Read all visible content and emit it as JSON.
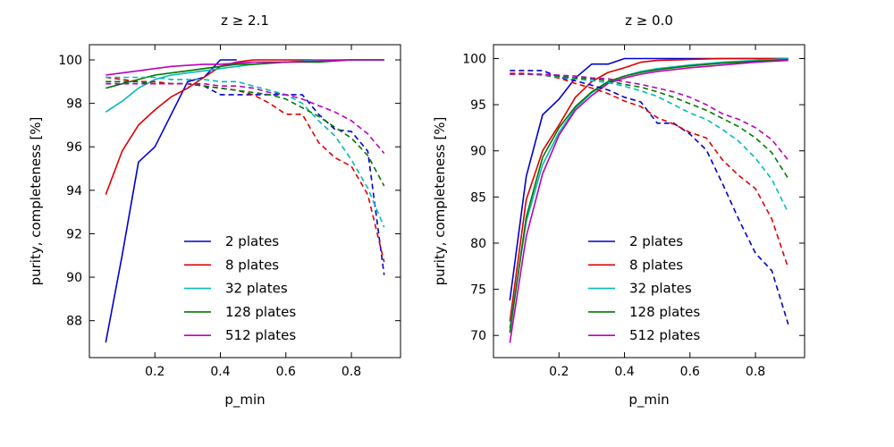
{
  "chart_data": [
    {
      "type": "line",
      "title": "z ≥ 2.1",
      "xlabel": "p_min",
      "ylabel": "purity, completeness [%]",
      "xlim": [
        0.0,
        0.95
      ],
      "ylim": [
        86.3,
        100.7
      ],
      "xticks": [
        0.2,
        0.4,
        0.6,
        0.8
      ],
      "yticks": [
        88,
        90,
        92,
        94,
        96,
        98,
        100
      ],
      "legend_position": "lower center",
      "series": [
        {
          "name": "2 plates",
          "color": "#0000cc",
          "style": "solid",
          "x": [
            0.05,
            0.1,
            0.15,
            0.2,
            0.25,
            0.3,
            0.35,
            0.4,
            0.45
          ],
          "y": [
            87.0,
            91.0,
            95.3,
            96.0,
            97.5,
            99.0,
            99.2,
            100.0,
            100.0
          ]
        },
        {
          "name": "8 plates",
          "color": "#dd0000",
          "style": "solid",
          "x": [
            0.05,
            0.1,
            0.15,
            0.2,
            0.25,
            0.3,
            0.35,
            0.4,
            0.45,
            0.5,
            0.6,
            0.7,
            0.8,
            0.9
          ],
          "y": [
            93.8,
            95.8,
            97.0,
            97.7,
            98.3,
            98.7,
            99.2,
            99.7,
            99.9,
            100.0,
            100.0,
            100.0,
            100.0,
            100.0
          ]
        },
        {
          "name": "32 plates",
          "color": "#00bbbb",
          "style": "solid",
          "x": [
            0.05,
            0.1,
            0.15,
            0.2,
            0.25,
            0.3,
            0.35,
            0.4,
            0.45,
            0.5,
            0.6,
            0.7,
            0.8,
            0.9
          ],
          "y": [
            97.6,
            98.1,
            98.7,
            99.1,
            99.3,
            99.4,
            99.5,
            99.6,
            99.7,
            99.8,
            99.9,
            100.0,
            100.0,
            100.0
          ]
        },
        {
          "name": "128 plates",
          "color": "#007700",
          "style": "solid",
          "x": [
            0.05,
            0.1,
            0.15,
            0.2,
            0.25,
            0.3,
            0.35,
            0.4,
            0.45,
            0.5,
            0.6,
            0.7,
            0.8,
            0.9
          ],
          "y": [
            98.7,
            98.9,
            99.1,
            99.3,
            99.4,
            99.5,
            99.6,
            99.7,
            99.8,
            99.8,
            99.9,
            99.9,
            100.0,
            100.0
          ]
        },
        {
          "name": "512 plates",
          "color": "#bb00bb",
          "style": "solid",
          "x": [
            0.05,
            0.1,
            0.15,
            0.2,
            0.25,
            0.3,
            0.35,
            0.4,
            0.45,
            0.5,
            0.6,
            0.7,
            0.8,
            0.9
          ],
          "y": [
            99.3,
            99.4,
            99.5,
            99.6,
            99.7,
            99.75,
            99.8,
            99.8,
            99.85,
            99.9,
            99.9,
            99.95,
            100.0,
            100.0
          ]
        },
        {
          "name": "2 plates completeness",
          "color": "#0000cc",
          "style": "dashed",
          "x": [
            0.05,
            0.1,
            0.15,
            0.2,
            0.25,
            0.3,
            0.35,
            0.4,
            0.45,
            0.5,
            0.55,
            0.6,
            0.65,
            0.7,
            0.75,
            0.8,
            0.85,
            0.9
          ],
          "y": [
            99.0,
            99.0,
            99.0,
            98.9,
            98.9,
            98.9,
            98.8,
            98.4,
            98.4,
            98.4,
            98.4,
            98.4,
            98.4,
            97.5,
            96.8,
            96.7,
            95.8,
            90.1
          ]
        },
        {
          "name": "8 plates completeness",
          "color": "#dd0000",
          "style": "dashed",
          "x": [
            0.05,
            0.1,
            0.15,
            0.2,
            0.25,
            0.3,
            0.35,
            0.4,
            0.45,
            0.5,
            0.55,
            0.6,
            0.65,
            0.7,
            0.75,
            0.8,
            0.85,
            0.9
          ],
          "y": [
            99.2,
            99.1,
            99.0,
            99.0,
            98.9,
            98.9,
            98.8,
            98.7,
            98.6,
            98.4,
            98.0,
            97.5,
            97.5,
            96.2,
            95.5,
            95.1,
            93.8,
            90.7
          ]
        },
        {
          "name": "32 plates completeness",
          "color": "#00bbbb",
          "style": "dashed",
          "x": [
            0.05,
            0.1,
            0.15,
            0.2,
            0.25,
            0.3,
            0.35,
            0.4,
            0.45,
            0.5,
            0.55,
            0.6,
            0.65,
            0.7,
            0.75,
            0.8,
            0.85,
            0.9
          ],
          "y": [
            99.2,
            99.2,
            99.2,
            99.2,
            99.1,
            99.1,
            99.1,
            99.0,
            99.0,
            98.8,
            98.6,
            98.4,
            98.0,
            97.2,
            96.5,
            95.4,
            94.1,
            92.3
          ]
        },
        {
          "name": "128 plates completeness",
          "color": "#007700",
          "style": "dashed",
          "x": [
            0.05,
            0.1,
            0.15,
            0.2,
            0.25,
            0.3,
            0.35,
            0.4,
            0.45,
            0.5,
            0.55,
            0.6,
            0.65,
            0.7,
            0.75,
            0.8,
            0.85,
            0.9
          ],
          "y": [
            99.0,
            99.0,
            99.0,
            98.9,
            98.9,
            98.9,
            98.8,
            98.7,
            98.6,
            98.5,
            98.4,
            98.2,
            97.8,
            97.4,
            96.9,
            96.4,
            95.6,
            94.2
          ]
        },
        {
          "name": "512 plates completeness",
          "color": "#bb00bb",
          "style": "dashed",
          "x": [
            0.05,
            0.1,
            0.15,
            0.2,
            0.25,
            0.3,
            0.35,
            0.4,
            0.45,
            0.5,
            0.55,
            0.6,
            0.65,
            0.7,
            0.75,
            0.8,
            0.85,
            0.9
          ],
          "y": [
            98.9,
            98.9,
            98.9,
            98.9,
            98.9,
            98.9,
            98.9,
            98.8,
            98.8,
            98.7,
            98.5,
            98.4,
            98.2,
            97.9,
            97.6,
            97.2,
            96.6,
            95.7
          ]
        }
      ]
    },
    {
      "type": "line",
      "title": "z ≥ 0.0",
      "xlabel": "p_min",
      "ylabel": "purity, completeness [%]",
      "xlim": [
        0.0,
        0.95
      ],
      "ylim": [
        67.6,
        101.5
      ],
      "xticks": [
        0.2,
        0.4,
        0.6,
        0.8
      ],
      "yticks": [
        70,
        75,
        80,
        85,
        90,
        95,
        100
      ],
      "legend_position": "lower center",
      "series": [
        {
          "name": "2 plates",
          "color": "#0000cc",
          "style": "solid",
          "x": [
            0.05,
            0.1,
            0.15,
            0.2,
            0.25,
            0.3,
            0.35,
            0.4,
            0.45,
            0.5,
            0.6,
            0.7,
            0.8,
            0.9
          ],
          "y": [
            73.8,
            87.2,
            93.9,
            95.6,
            97.9,
            99.4,
            99.4,
            100.0,
            100.0,
            100.0,
            100.0,
            100.0,
            100.0,
            100.0
          ]
        },
        {
          "name": "8 plates",
          "color": "#dd0000",
          "style": "solid",
          "x": [
            0.05,
            0.1,
            0.15,
            0.2,
            0.25,
            0.3,
            0.35,
            0.4,
            0.45,
            0.5,
            0.6,
            0.7,
            0.8,
            0.9
          ],
          "y": [
            71.5,
            84.7,
            90.0,
            92.8,
            95.8,
            97.5,
            98.5,
            99.0,
            99.6,
            99.8,
            99.9,
            100.0,
            100.0,
            100.0
          ]
        },
        {
          "name": "32 plates",
          "color": "#00bbbb",
          "style": "solid",
          "x": [
            0.05,
            0.1,
            0.15,
            0.2,
            0.25,
            0.3,
            0.35,
            0.4,
            0.45,
            0.5,
            0.6,
            0.7,
            0.8,
            0.9
          ],
          "y": [
            70.8,
            82.3,
            88.5,
            92.0,
            94.6,
            96.3,
            97.4,
            98.1,
            98.6,
            98.9,
            99.3,
            99.6,
            99.8,
            100.0
          ]
        },
        {
          "name": "128 plates",
          "color": "#007700",
          "style": "solid",
          "x": [
            0.05,
            0.1,
            0.15,
            0.2,
            0.25,
            0.3,
            0.35,
            0.4,
            0.45,
            0.5,
            0.6,
            0.7,
            0.8,
            0.9
          ],
          "y": [
            70.3,
            82.8,
            89.3,
            92.5,
            94.8,
            96.4,
            97.5,
            98.1,
            98.5,
            98.8,
            99.2,
            99.5,
            99.7,
            99.9
          ]
        },
        {
          "name": "512 plates",
          "color": "#bb00bb",
          "style": "solid",
          "x": [
            0.05,
            0.1,
            0.15,
            0.2,
            0.25,
            0.3,
            0.35,
            0.4,
            0.45,
            0.5,
            0.6,
            0.7,
            0.8,
            0.9
          ],
          "y": [
            69.2,
            80.7,
            87.5,
            91.7,
            94.4,
            96.0,
            97.3,
            97.9,
            98.3,
            98.6,
            99.0,
            99.3,
            99.6,
            99.8
          ]
        },
        {
          "name": "2 plates completeness",
          "color": "#0000cc",
          "style": "dashed",
          "x": [
            0.05,
            0.1,
            0.15,
            0.2,
            0.25,
            0.3,
            0.35,
            0.4,
            0.45,
            0.5,
            0.55,
            0.6,
            0.65,
            0.7,
            0.75,
            0.8,
            0.85,
            0.9
          ],
          "y": [
            98.7,
            98.7,
            98.7,
            98.0,
            97.6,
            97.1,
            96.6,
            95.8,
            95.3,
            93.0,
            93.0,
            91.8,
            90.1,
            86.4,
            82.5,
            78.9,
            77.0,
            71.2
          ]
        },
        {
          "name": "8 plates completeness",
          "color": "#dd0000",
          "style": "dashed",
          "x": [
            0.05,
            0.1,
            0.15,
            0.2,
            0.25,
            0.3,
            0.35,
            0.4,
            0.45,
            0.5,
            0.55,
            0.6,
            0.65,
            0.7,
            0.75,
            0.8,
            0.85,
            0.9
          ],
          "y": [
            98.4,
            98.4,
            98.2,
            97.9,
            97.3,
            96.8,
            96.2,
            95.4,
            94.8,
            93.6,
            92.9,
            92.0,
            91.4,
            89.0,
            87.3,
            85.9,
            82.6,
            77.3
          ]
        },
        {
          "name": "32 plates completeness",
          "color": "#00bbbb",
          "style": "dashed",
          "x": [
            0.05,
            0.1,
            0.15,
            0.2,
            0.25,
            0.3,
            0.35,
            0.4,
            0.45,
            0.5,
            0.55,
            0.6,
            0.65,
            0.7,
            0.75,
            0.8,
            0.85,
            0.9
          ],
          "y": [
            98.3,
            98.3,
            98.2,
            98.0,
            97.8,
            97.6,
            97.4,
            97.0,
            96.5,
            95.9,
            95.0,
            94.1,
            93.4,
            92.3,
            91.0,
            89.2,
            86.9,
            83.3
          ]
        },
        {
          "name": "128 plates completeness",
          "color": "#007700",
          "style": "dashed",
          "x": [
            0.05,
            0.1,
            0.15,
            0.2,
            0.25,
            0.3,
            0.35,
            0.4,
            0.45,
            0.5,
            0.55,
            0.6,
            0.65,
            0.7,
            0.75,
            0.8,
            0.85,
            0.9
          ],
          "y": [
            98.3,
            98.3,
            98.3,
            98.1,
            97.9,
            97.8,
            97.6,
            97.2,
            96.9,
            96.4,
            95.8,
            95.1,
            94.4,
            93.5,
            92.6,
            91.4,
            89.8,
            87.0
          ]
        },
        {
          "name": "512 plates completeness",
          "color": "#bb00bb",
          "style": "dashed",
          "x": [
            0.05,
            0.1,
            0.15,
            0.2,
            0.25,
            0.3,
            0.35,
            0.4,
            0.45,
            0.5,
            0.55,
            0.6,
            0.65,
            0.7,
            0.75,
            0.8,
            0.85,
            0.9
          ],
          "y": [
            98.3,
            98.3,
            98.3,
            98.2,
            98.1,
            97.9,
            97.8,
            97.5,
            97.2,
            96.8,
            96.4,
            95.8,
            95.0,
            94.0,
            93.4,
            92.5,
            91.2,
            89.0
          ]
        }
      ]
    }
  ]
}
